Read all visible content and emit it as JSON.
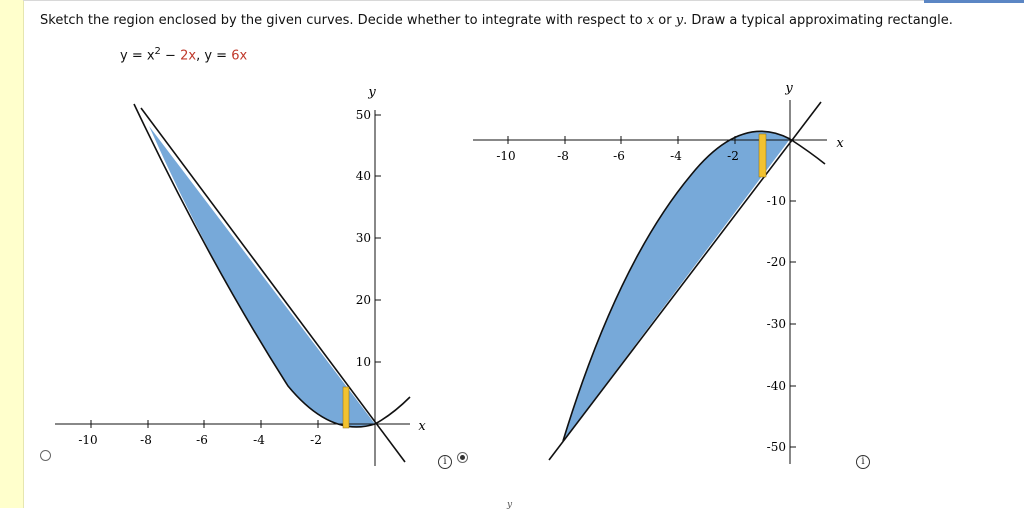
{
  "question": {
    "text_before_x": "Sketch the region enclosed by the given curves. Decide whether to integrate with respect to ",
    "var_x": "x",
    "text_or": " or ",
    "var_y": "y",
    "text_after": ". Draw a typical approximating rectangle."
  },
  "equation": {
    "y1_lhs": "y = x",
    "y1_exp": "2",
    "y1_mid": " − ",
    "y1_term": "2x",
    "sep": ",  y = ",
    "y2_term": "6x"
  },
  "option_a": {
    "selected": false,
    "info_icon": "i",
    "x_axis_label": "x",
    "y_axis_label": "y",
    "x_tick_labels": [
      "-10",
      "-8",
      "-6",
      "-4",
      "-2"
    ],
    "y_tick_labels": [
      "10",
      "20",
      "30",
      "40",
      "50"
    ]
  },
  "option_b": {
    "selected": true,
    "info_icon": "i",
    "x_axis_label": "x",
    "y_axis_label": "y",
    "x_tick_labels": [
      "-10",
      "-8",
      "-6",
      "-4",
      "-2"
    ],
    "y_tick_labels": [
      "-10",
      "-20",
      "-30",
      "-40",
      "-50"
    ]
  },
  "colors": {
    "region_fill": "#77a9d9",
    "rectangle_fill": "#f2c230",
    "curve": "#111111"
  },
  "bottom_partial_glyph": "y"
}
